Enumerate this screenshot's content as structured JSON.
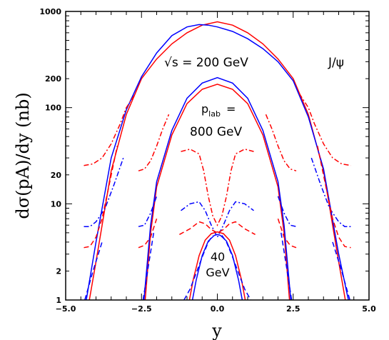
{
  "chart_data": {
    "type": "line",
    "title": "",
    "xlabel": "y",
    "ylabel": "dσ(pA)/dy (nb)",
    "xlim": [
      -5.0,
      5.0
    ],
    "ylim": [
      1,
      1000
    ],
    "yscale": "log",
    "grid": false,
    "x_ticks": [
      {
        "value": -5.0,
        "label": "−5.0"
      },
      {
        "value": -2.5,
        "label": "−2.5"
      },
      {
        "value": 0.0,
        "label": "0.0"
      },
      {
        "value": 2.5,
        "label": "2.5"
      },
      {
        "value": 5.0,
        "label": "5.0"
      }
    ],
    "y_ticks": [
      {
        "value": 1,
        "label": "1"
      },
      {
        "value": 2,
        "label": "2"
      },
      {
        "value": 10,
        "label": "10"
      },
      {
        "value": 20,
        "label": "20"
      },
      {
        "value": 100,
        "label": "100"
      },
      {
        "value": 200,
        "label": "200"
      },
      {
        "value": 1000,
        "label": "1000"
      }
    ],
    "annotations": {
      "sqrt_s": "√s  =  200  GeV",
      "particle": "J/ψ",
      "plab_line1": "p",
      "plab_sub": "lab",
      "plab_eq": "=",
      "plab_line2": "800  GeV",
      "e40_line1": "40",
      "e40_line2": "GeV"
    },
    "series": [
      {
        "color": "#ff0000",
        "style": "solid",
        "x": [
          -4.22,
          -4.0,
          -3.5,
          -3.0,
          -2.5,
          -2.0,
          -1.5,
          -1.0,
          -0.5,
          0.0,
          0.5,
          1.0,
          1.5,
          2.0,
          2.5,
          3.0,
          3.5,
          4.0,
          4.22
        ],
        "y": [
          1,
          2.5,
          22,
          85,
          200,
          320,
          460,
          600,
          720,
          780,
          720,
          600,
          460,
          320,
          200,
          85,
          22,
          2.5,
          1
        ]
      },
      {
        "color": "#0000ff",
        "style": "solid",
        "x": [
          -4.32,
          -4.0,
          -3.5,
          -3.0,
          -2.5,
          -2.0,
          -1.5,
          -1.0,
          -0.6,
          -0.3,
          0.0,
          0.5,
          1.0,
          1.5,
          2.0,
          2.5,
          3.0,
          3.5,
          4.0,
          4.32
        ],
        "y": [
          1,
          4,
          30,
          95,
          210,
          370,
          560,
          690,
          730,
          720,
          690,
          620,
          520,
          410,
          300,
          190,
          80,
          23,
          3,
          1
        ]
      },
      {
        "color": "#0000ff",
        "style": "dashed",
        "x": [
          -4.37,
          -4.1,
          -3.8
        ],
        "y": [
          1,
          2,
          4
        ]
      },
      {
        "color": "#0000ff",
        "style": "dashed",
        "x": [
          3.8,
          4.1,
          4.37
        ],
        "y": [
          4,
          2,
          1
        ]
      },
      {
        "color": "#ff0000",
        "style": "dashdot",
        "x": [
          -4.4,
          -4.1,
          -3.8,
          -3.5,
          -3.2,
          -3.0,
          -2.7
        ],
        "y": [
          25,
          26,
          30,
          42,
          68,
          100,
          140
        ]
      },
      {
        "color": "#ff0000",
        "style": "dashdot",
        "x": [
          2.7,
          3.0,
          3.2,
          3.5,
          3.8,
          4.1,
          4.4
        ],
        "y": [
          140,
          100,
          68,
          42,
          30,
          26,
          25
        ]
      },
      {
        "color": "#0000ff",
        "style": "dashdot",
        "x": [
          -4.4,
          -4.2,
          -4.0,
          -3.7,
          -3.4,
          -3.1
        ],
        "y": [
          5.8,
          5.8,
          6.5,
          9,
          16,
          30
        ]
      },
      {
        "color": "#0000ff",
        "style": "dashdot",
        "x": [
          3.1,
          3.4,
          3.7,
          4.0,
          4.2,
          4.4
        ],
        "y": [
          30,
          16,
          9,
          6.5,
          5.8,
          5.8
        ]
      },
      {
        "color": "#ff0000",
        "style": "dashed",
        "x": [
          -4.4,
          -4.2,
          -4.0,
          -3.8,
          -3.6,
          -3.3
        ],
        "y": [
          3.5,
          3.6,
          4.5,
          7,
          14,
          40
        ]
      },
      {
        "color": "#ff0000",
        "style": "dashed",
        "x": [
          3.3,
          3.6,
          3.8,
          4.0,
          4.2,
          4.4
        ],
        "y": [
          40,
          14,
          7,
          4.5,
          3.6,
          3.5
        ]
      },
      {
        "color": "#ff0000",
        "style": "solid",
        "x": [
          -2.38,
          -2.2,
          -2.0,
          -1.5,
          -1.0,
          -0.5,
          0.0,
          0.5,
          1.0,
          1.5,
          2.0,
          2.2,
          2.38
        ],
        "y": [
          1,
          5,
          15,
          52,
          110,
          155,
          175,
          155,
          110,
          52,
          15,
          5,
          1
        ]
      },
      {
        "color": "#0000ff",
        "style": "solid",
        "x": [
          -2.42,
          -2.2,
          -2.0,
          -1.5,
          -1.0,
          -0.5,
          0.0,
          0.5,
          1.0,
          1.5,
          2.0,
          2.2,
          2.42
        ],
        "y": [
          1,
          6,
          17,
          58,
          125,
          180,
          205,
          180,
          125,
          58,
          17,
          6,
          1
        ]
      },
      {
        "color": "#0000ff",
        "style": "dashed",
        "x": [
          -2.45,
          -2.3,
          -2.1
        ],
        "y": [
          1,
          2,
          5
        ]
      },
      {
        "color": "#0000ff",
        "style": "dashed",
        "x": [
          2.1,
          2.3,
          2.45
        ],
        "y": [
          5,
          2,
          1
        ]
      },
      {
        "color": "#ff0000",
        "style": "dashdot",
        "x": [
          -2.6,
          -2.4,
          -2.2,
          -2.0,
          -1.8,
          -1.6
        ],
        "y": [
          22,
          23,
          28,
          40,
          60,
          85
        ]
      },
      {
        "color": "#ff0000",
        "style": "dashdot",
        "x": [
          1.6,
          1.8,
          2.0,
          2.2,
          2.4,
          2.6
        ],
        "y": [
          85,
          60,
          40,
          28,
          23,
          22
        ]
      },
      {
        "color": "#ff0000",
        "style": "dashdot",
        "x": [
          -1.2,
          -0.9,
          -0.6,
          -0.45,
          -0.3,
          -0.15,
          0.0,
          0.15,
          0.3,
          0.45,
          0.6,
          0.9,
          1.2
        ],
        "y": [
          35,
          37,
          33,
          22,
          12,
          7.5,
          6,
          7.5,
          12,
          22,
          33,
          37,
          35
        ]
      },
      {
        "color": "#0000ff",
        "style": "dashdot",
        "x": [
          -2.6,
          -2.4,
          -2.2,
          -2.0
        ],
        "y": [
          5.8,
          6,
          8,
          12
        ]
      },
      {
        "color": "#0000ff",
        "style": "dashdot",
        "x": [
          2.0,
          2.2,
          2.4,
          2.6
        ],
        "y": [
          12,
          8,
          6,
          5.8
        ]
      },
      {
        "color": "#0000ff",
        "style": "dashdot",
        "x": [
          -1.2,
          -0.9,
          -0.6,
          -0.4,
          -0.2,
          0.0,
          0.2,
          0.4,
          0.6,
          0.9,
          1.2
        ],
        "y": [
          8.5,
          10,
          10.5,
          8.5,
          6,
          4.5,
          6,
          8.5,
          10.5,
          10,
          8.5
        ]
      },
      {
        "color": "#ff0000",
        "style": "dashed",
        "x": [
          -2.6,
          -2.4,
          -2.2,
          -2.0
        ],
        "y": [
          3.5,
          3.7,
          4.5,
          7
        ]
      },
      {
        "color": "#ff0000",
        "style": "dashed",
        "x": [
          2.0,
          2.2,
          2.4,
          2.6
        ],
        "y": [
          7,
          4.5,
          3.7,
          3.5
        ]
      },
      {
        "color": "#ff0000",
        "style": "dashed",
        "x": [
          -1.25,
          -0.9,
          -0.6,
          -0.4,
          -0.2,
          0.0,
          0.2,
          0.4,
          0.6,
          0.9,
          1.25
        ],
        "y": [
          4.8,
          5.5,
          6.5,
          6.2,
          5.4,
          5.0,
          5.4,
          6.2,
          6.5,
          5.5,
          4.8
        ]
      },
      {
        "color": "#ff0000",
        "style": "solid",
        "x": [
          -0.92,
          -0.8,
          -0.6,
          -0.4,
          -0.2,
          0.0,
          0.2,
          0.4,
          0.6,
          0.8,
          0.92
        ],
        "y": [
          1,
          1.6,
          2.9,
          4.2,
          4.9,
          5.1,
          4.9,
          4.2,
          2.9,
          1.6,
          1
        ]
      },
      {
        "color": "#0000ff",
        "style": "solid",
        "x": [
          -0.82,
          -0.7,
          -0.5,
          -0.3,
          -0.1,
          0.0,
          0.1,
          0.3,
          0.5,
          0.7,
          0.82
        ],
        "y": [
          1,
          1.6,
          2.9,
          4.1,
          4.7,
          4.8,
          4.7,
          4.1,
          2.9,
          1.6,
          1
        ]
      },
      {
        "color": "#0000ff",
        "style": "dashed",
        "x": [
          -1.1,
          -0.9,
          -0.7,
          -0.5,
          -0.3,
          -0.15
        ],
        "y": [
          1,
          1.3,
          1.9,
          2.8,
          4.0,
          4.7
        ]
      },
      {
        "color": "#0000ff",
        "style": "dashed",
        "x": [
          0.15,
          0.3,
          0.5,
          0.7,
          0.9,
          1.1
        ],
        "y": [
          4.7,
          4.0,
          2.8,
          1.9,
          1.3,
          1
        ]
      }
    ]
  }
}
